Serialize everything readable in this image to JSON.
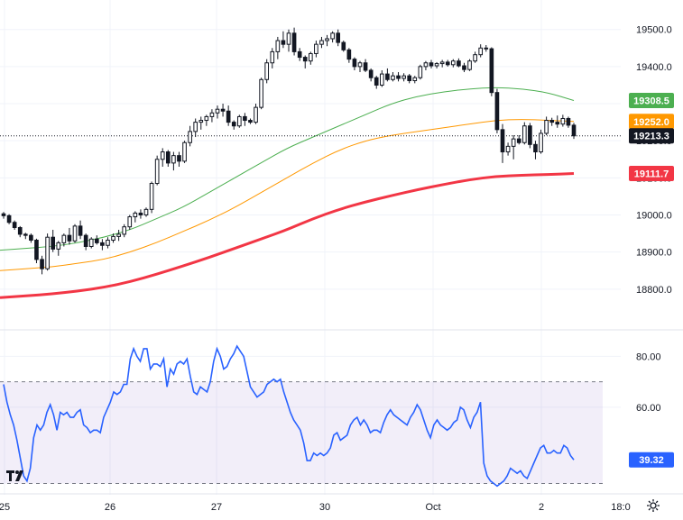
{
  "chart_data": [
    {
      "type": "candlestick",
      "x_tick_labels": [
        "25",
        "26",
        "27",
        "30",
        "Oct",
        "2",
        "18:0"
      ],
      "y_tick_labels": [
        "19500.0",
        "19400.0",
        "19300.0",
        "19200.0",
        "19100.0",
        "19000.0",
        "18900.0",
        "18800.0"
      ],
      "y_ticks": [
        19500,
        19400,
        19300,
        19200,
        19100,
        19000,
        18900,
        18800
      ],
      "ylim": [
        18700,
        19560
      ],
      "last_price": 19213.3,
      "ohlc": [
        [
          19003,
          19008,
          18990,
          18998
        ],
        [
          18998,
          19002,
          18975,
          18980
        ],
        [
          18980,
          18985,
          18960,
          18966
        ],
        [
          18966,
          18970,
          18940,
          18948
        ],
        [
          18948,
          18952,
          18935,
          18945
        ],
        [
          18945,
          18950,
          18925,
          18932
        ],
        [
          18932,
          18936,
          18870,
          18880
        ],
        [
          18880,
          18890,
          18840,
          18855
        ],
        [
          18855,
          18950,
          18850,
          18940
        ],
        [
          18940,
          18960,
          18900,
          18908
        ],
        [
          18908,
          18930,
          18890,
          18925
        ],
        [
          18925,
          18950,
          18915,
          18945
        ],
        [
          18945,
          18965,
          18920,
          18930
        ],
        [
          18930,
          18975,
          18925,
          18970
        ],
        [
          18970,
          18985,
          18935,
          18945
        ],
        [
          18945,
          18950,
          18905,
          18915
        ],
        [
          18915,
          18940,
          18910,
          18935
        ],
        [
          18935,
          18945,
          18920,
          18925
        ],
        [
          18925,
          18935,
          18905,
          18918
        ],
        [
          18918,
          18940,
          18910,
          18932
        ],
        [
          18932,
          18950,
          18925,
          18942
        ],
        [
          18942,
          18960,
          18930,
          18948
        ],
        [
          18948,
          18975,
          18940,
          18968
        ],
        [
          18968,
          19000,
          18960,
          18995
        ],
        [
          18995,
          19010,
          18980,
          19005
        ],
        [
          19005,
          19015,
          18990,
          19000
        ],
        [
          19000,
          19020,
          18995,
          19015
        ],
        [
          19015,
          19090,
          19005,
          19085
        ],
        [
          19085,
          19160,
          19080,
          19150
        ],
        [
          19150,
          19180,
          19130,
          19170
        ],
        [
          19170,
          19175,
          19130,
          19140
        ],
        [
          19140,
          19170,
          19120,
          19160
        ],
        [
          19160,
          19170,
          19130,
          19145
        ],
        [
          19145,
          19200,
          19140,
          19195
        ],
        [
          19195,
          19240,
          19185,
          19225
        ],
        [
          19225,
          19260,
          19210,
          19250
        ],
        [
          19250,
          19265,
          19230,
          19255
        ],
        [
          19255,
          19270,
          19240,
          19265
        ],
        [
          19265,
          19285,
          19250,
          19275
        ],
        [
          19275,
          19295,
          19260,
          19285
        ],
        [
          19285,
          19300,
          19265,
          19280
        ],
        [
          19280,
          19295,
          19240,
          19250
        ],
        [
          19250,
          19255,
          19230,
          19240
        ],
        [
          19240,
          19270,
          19235,
          19265
        ],
        [
          19265,
          19275,
          19240,
          19255
        ],
        [
          19255,
          19260,
          19245,
          19250
        ],
        [
          19250,
          19300,
          19245,
          19290
        ],
        [
          19290,
          19370,
          19285,
          19365
        ],
        [
          19365,
          19420,
          19355,
          19410
        ],
        [
          19410,
          19450,
          19395,
          19440
        ],
        [
          19440,
          19480,
          19420,
          19470
        ],
        [
          19470,
          19495,
          19450,
          19460
        ],
        [
          19460,
          19500,
          19440,
          19490
        ],
        [
          19490,
          19505,
          19430,
          19440
        ],
        [
          19440,
          19450,
          19415,
          19425
        ],
        [
          19425,
          19430,
          19395,
          19415
        ],
        [
          19415,
          19440,
          19405,
          19435
        ],
        [
          19435,
          19470,
          19425,
          19460
        ],
        [
          19460,
          19480,
          19450,
          19470
        ],
        [
          19470,
          19485,
          19455,
          19475
        ],
        [
          19475,
          19495,
          19465,
          19490
        ],
        [
          19490,
          19500,
          19455,
          19465
        ],
        [
          19465,
          19470,
          19440,
          19445
        ],
        [
          19445,
          19450,
          19410,
          19420
        ],
        [
          19420,
          19425,
          19390,
          19400
        ],
        [
          19400,
          19415,
          19385,
          19410
        ],
        [
          19410,
          19420,
          19385,
          19390
        ],
        [
          19390,
          19395,
          19360,
          19370
        ],
        [
          19370,
          19375,
          19340,
          19350
        ],
        [
          19350,
          19390,
          19345,
          19380
        ],
        [
          19380,
          19395,
          19360,
          19365
        ],
        [
          19365,
          19385,
          19360,
          19375
        ],
        [
          19375,
          19385,
          19360,
          19368
        ],
        [
          19368,
          19382,
          19360,
          19375
        ],
        [
          19375,
          19380,
          19355,
          19362
        ],
        [
          19362,
          19375,
          19355,
          19370
        ],
        [
          19370,
          19405,
          19365,
          19400
        ],
        [
          19400,
          19415,
          19390,
          19410
        ],
        [
          19410,
          19418,
          19395,
          19402
        ],
        [
          19402,
          19412,
          19395,
          19408
        ],
        [
          19408,
          19418,
          19398,
          19412
        ],
        [
          19412,
          19418,
          19400,
          19405
        ],
        [
          19405,
          19420,
          19398,
          19415
        ],
        [
          19415,
          19422,
          19398,
          19402
        ],
        [
          19402,
          19410,
          19385,
          19392
        ],
        [
          19392,
          19420,
          19388,
          19415
        ],
        [
          19415,
          19440,
          19410,
          19432
        ],
        [
          19432,
          19460,
          19425,
          19450
        ],
        [
          19450,
          19458,
          19440,
          19448
        ],
        [
          19448,
          19452,
          19320,
          19330
        ],
        [
          19330,
          19340,
          19220,
          19230
        ],
        [
          19230,
          19245,
          19140,
          19170
        ],
        [
          19170,
          19195,
          19160,
          19185
        ],
        [
          19185,
          19215,
          19150,
          19205
        ],
        [
          19205,
          19215,
          19190,
          19195
        ],
        [
          19195,
          19250,
          19190,
          19240
        ],
        [
          19240,
          19248,
          19180,
          19190
        ],
        [
          19190,
          19200,
          19150,
          19170
        ],
        [
          19170,
          19230,
          19165,
          19220
        ],
        [
          19220,
          19265,
          19215,
          19255
        ],
        [
          19255,
          19262,
          19240,
          19250
        ],
        [
          19250,
          19268,
          19235,
          19245
        ],
        [
          19245,
          19270,
          19238,
          19260
        ],
        [
          19260,
          19265,
          19235,
          19242
        ],
        [
          19242,
          19248,
          19205,
          19213.3
        ]
      ],
      "ma_lines": [
        {
          "color": "#4caf50",
          "width": 1,
          "label": "19308.5",
          "values": [
            18905,
            18910,
            18915,
            18925,
            18940,
            18960,
            18990,
            19020,
            19060,
            19100,
            19140,
            19180,
            19210,
            19240,
            19270,
            19300,
            19320,
            19332,
            19340,
            19344,
            19340,
            19330,
            19308.5
          ]
        },
        {
          "color": "#ff9800",
          "width": 1,
          "label": "19252.0",
          "values": [
            18850,
            18855,
            18860,
            18870,
            18880,
            18900,
            18925,
            18955,
            18985,
            19020,
            19060,
            19100,
            19140,
            19175,
            19200,
            19215,
            19225,
            19235,
            19245,
            19255,
            19258,
            19255,
            19252
          ]
        },
        {
          "color": "#f23645",
          "width": 3,
          "label": "19111.7",
          "values": [
            18777,
            18782,
            18787,
            18795,
            18805,
            18820,
            18840,
            18862,
            18885,
            18910,
            18935,
            18960,
            18990,
            19015,
            19035,
            19052,
            19068,
            19082,
            19095,
            19104,
            19107,
            19109,
            19111.7
          ]
        }
      ],
      "tags": [
        {
          "label": "19308.5",
          "value": 19308.5,
          "color": "#4caf50"
        },
        {
          "label": "19252.0",
          "value": 19252.0,
          "color": "#ff9800"
        },
        {
          "label": "19213.3",
          "value": 19213.3,
          "color": "#131722"
        },
        {
          "label": "19111.7",
          "value": 19111.7,
          "color": "#f23645"
        }
      ]
    },
    {
      "type": "line",
      "indicator": "RSI",
      "y_tick_labels": [
        "80.00",
        "60.00"
      ],
      "y_ticks": [
        80,
        60
      ],
      "band": [
        30,
        70
      ],
      "ylim": [
        27,
        89
      ],
      "last_value": 39.32,
      "color": "#2962ff",
      "values": [
        69,
        62,
        57,
        53,
        47,
        40,
        33,
        31,
        36,
        48,
        53,
        51,
        53,
        58,
        61,
        57,
        51,
        58,
        57,
        58,
        56,
        56,
        58,
        59,
        53,
        52,
        50,
        51,
        51,
        50,
        56,
        59,
        62,
        66,
        65,
        66,
        69,
        69,
        79,
        83,
        80,
        78,
        83,
        83,
        75,
        77,
        77,
        76,
        79,
        68,
        75,
        73,
        77,
        78,
        77,
        79,
        72,
        66,
        65,
        68,
        67,
        66,
        70,
        78,
        83,
        80,
        75,
        76,
        79,
        81,
        84,
        82,
        80,
        74,
        68,
        66,
        64,
        65,
        66,
        69,
        70,
        71,
        70,
        71,
        66,
        62,
        58,
        55,
        53,
        51,
        46,
        39,
        39,
        42,
        41,
        42,
        41,
        42,
        44,
        49,
        50,
        47,
        48,
        49,
        53,
        55,
        56,
        53,
        55,
        53,
        50,
        51,
        51,
        50,
        54,
        57,
        59,
        57,
        56,
        55,
        54,
        53,
        56,
        58,
        61,
        59,
        55,
        51,
        48,
        53,
        55,
        53,
        52,
        51,
        52,
        54,
        55,
        60,
        59,
        55,
        52,
        56,
        58,
        62,
        38,
        33,
        31,
        30,
        29,
        30,
        31,
        33,
        36,
        35,
        34,
        35,
        33,
        32,
        35,
        38,
        41,
        44,
        45,
        42,
        42,
        43,
        42,
        42,
        45,
        44,
        41,
        39.32
      ]
    }
  ],
  "toolbar": {
    "logo_text": "TradingView",
    "settings_icon": "gear-icon"
  }
}
